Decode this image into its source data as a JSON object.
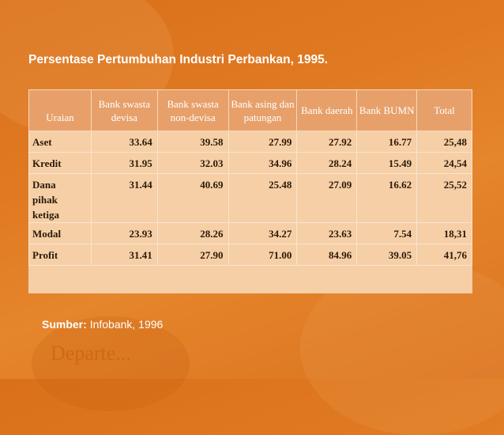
{
  "title": "Persentase Pertumbuhan Industri Perbankan, 1995.",
  "headers": [
    "Uraian",
    "Bank swasta devisa",
    "Bank swasta non-devisa",
    "Bank asing dan patungan",
    "Bank daerah",
    "Bank BUMN",
    "Total"
  ],
  "rows": [
    {
      "label": "Aset",
      "values": [
        "33.64",
        "39.58",
        "27.99",
        "27.92",
        "16.77",
        "25,48"
      ]
    },
    {
      "label": "Kredit",
      "values": [
        "31.95",
        "32.03",
        "34.96",
        "28.24",
        "15.49",
        "24,54"
      ]
    },
    {
      "label": "Dana pihak ketiga",
      "values": [
        "31.44",
        "40.69",
        "25.48",
        "27.09",
        "16.62",
        "25,52"
      ]
    },
    {
      "label": "Modal",
      "values": [
        "23.93",
        "28.26",
        "34.27",
        "23.63",
        "7.54",
        "18,31"
      ]
    },
    {
      "label": "Profit",
      "values": [
        "31.41",
        "27.90",
        "71.00",
        "84.96",
        "39.05",
        "41,76"
      ]
    }
  ],
  "source": {
    "label": "Sumber:",
    "text": "Infobank, 1996"
  },
  "watermark": "Departe..."
}
